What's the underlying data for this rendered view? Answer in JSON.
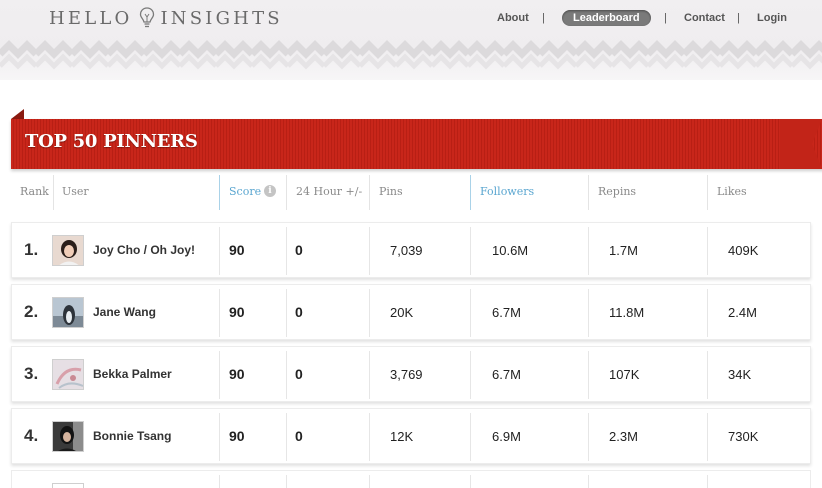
{
  "brand": {
    "logo_left": "HELLO",
    "logo_right": "INSIGHTS",
    "bulb_icon": "lightbulb-icon"
  },
  "nav": {
    "items": [
      {
        "label": "About"
      },
      {
        "label": "Leaderboard",
        "active": true
      },
      {
        "label": "Contact"
      },
      {
        "label": "Login"
      }
    ],
    "separator": "|"
  },
  "leaderboard": {
    "title": "TOP 50 PINNERS",
    "columns": {
      "rank": "Rank",
      "user": "User",
      "score": "Score",
      "delta": "24 Hour +/-",
      "pins": "Pins",
      "followers": "Followers",
      "repins": "Repins",
      "likes": "Likes"
    },
    "info_icon_glyph": "i",
    "rows": [
      {
        "rank": "1.",
        "user": "Joy Cho / Oh Joy!",
        "score": "90",
        "delta": "0",
        "pins": "7,039",
        "followers": "10.6M",
        "repins": "1.7M",
        "likes": "409K"
      },
      {
        "rank": "2.",
        "user": "Jane Wang",
        "score": "90",
        "delta": "0",
        "pins": "20K",
        "followers": "6.7M",
        "repins": "11.8M",
        "likes": "2.4M"
      },
      {
        "rank": "3.",
        "user": "Bekka Palmer",
        "score": "90",
        "delta": "0",
        "pins": "3,769",
        "followers": "6.7M",
        "repins": "107K",
        "likes": "34K"
      },
      {
        "rank": "4.",
        "user": "Bonnie Tsang",
        "score": "90",
        "delta": "0",
        "pins": "12K",
        "followers": "6.9M",
        "repins": "2.3M",
        "likes": "730K"
      }
    ]
  },
  "colors": {
    "ribbon": "#c8261a",
    "accent_blue": "#5aa6d0",
    "nav_active_bg": "#7a7a7a"
  }
}
